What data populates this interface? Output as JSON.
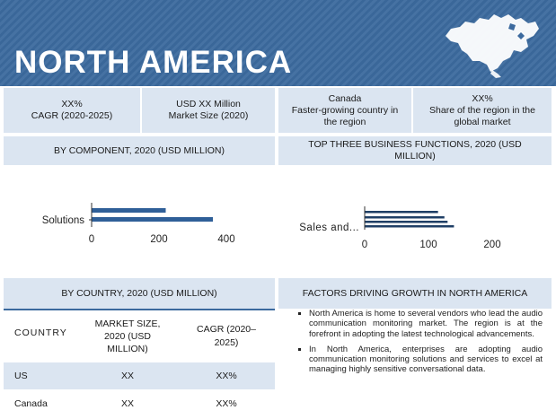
{
  "header": {
    "title": "NORTH AMERICA"
  },
  "stats": [
    {
      "value": "XX%",
      "label": "CAGR (2020-2025)"
    },
    {
      "value": "USD XX Million",
      "label": "Market Size (2020)"
    },
    {
      "value": "Canada",
      "label": "Faster-growing country in the region"
    },
    {
      "value": "XX%",
      "label": "Share of the region in the global market"
    }
  ],
  "sections": {
    "component_title": "BY COMPONENT, 2020 (USD MILLION)",
    "functions_title": "TOP THREE BUSINESS FUNCTIONS, 2020 (USD MILLION)",
    "country_title": "BY COUNTRY, 2020 (USD MILLION)",
    "factors_title": "FACTORS DRIVING GROWTH IN NORTH AMERICA"
  },
  "chart_data": [
    {
      "type": "bar",
      "orientation": "horizontal",
      "categories": [
        "Solutions",
        ""
      ],
      "series": [
        {
          "values": [
            220,
            0
          ]
        },
        {
          "values": [
            360,
            0
          ]
        }
      ],
      "xlim": [
        0,
        400
      ],
      "xticks": [
        "0",
        "200",
        "400"
      ],
      "tick_labels": [
        "Solutions"
      ],
      "colors": [
        "#2f5f98",
        "#2f5f98"
      ]
    },
    {
      "type": "bar",
      "orientation": "horizontal",
      "categories": [
        "Sales and...",
        "",
        "",
        ""
      ],
      "series": [
        {
          "values": [
            115,
            125,
            130,
            140
          ]
        }
      ],
      "xlim": [
        0,
        200
      ],
      "xticks": [
        "0",
        "100",
        "200"
      ],
      "tick_labels": [
        "Sales and..."
      ],
      "colors": [
        "#1f3f66"
      ]
    }
  ],
  "country_table": {
    "headers": [
      "COUNTRY",
      "MARKET SIZE, 2020 (USD MILLION)",
      "CAGR (2020–2025)"
    ],
    "rows": [
      [
        "US",
        "XX",
        "XX%"
      ],
      [
        "Canada",
        "XX",
        "XX%"
      ]
    ]
  },
  "factors": [
    "North America is home to several vendors who lead the audio communication monitoring market. The region is at the forefront in adopting the latest technological advancements.",
    "In North America, enterprises are adopting audio communication monitoring solutions and services to excel at managing highly sensitive conversational data."
  ],
  "colors": {
    "header": "#3c6a9e",
    "panel": "#dbe5f1",
    "bar": "#2f5f98",
    "bar_dark": "#1f3f66"
  }
}
